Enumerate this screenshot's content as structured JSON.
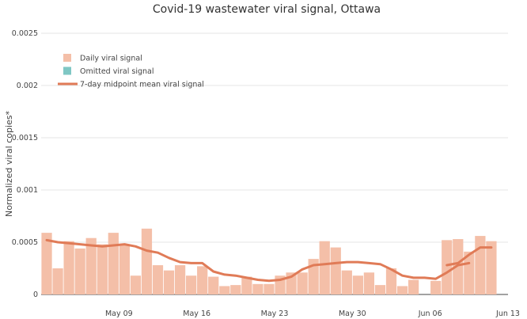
{
  "chart_data": {
    "type": "bar",
    "title": "Covid-19 wastewater viral signal, Ottawa",
    "ylabel": "Normalized viral copies*",
    "xlabel": "",
    "ylim": [
      0,
      0.0025
    ],
    "yticks": [
      "0",
      "0.0005",
      "0.001",
      "0.0015",
      "0.002",
      "0.0025"
    ],
    "ytick_values": [
      0,
      0.0005,
      0.001,
      0.0015,
      0.002,
      0.0025
    ],
    "xticks": [
      "May 09",
      "May 16",
      "May 23",
      "May 30",
      "Jun 06",
      "Jun 13"
    ],
    "xtick_dates": [
      "2021-05-09",
      "2021-05-16",
      "2021-05-23",
      "2021-05-30",
      "2021-06-06",
      "2021-06-13"
    ],
    "x_start": "2021-05-02",
    "x_end": "2021-06-13",
    "grid": true,
    "legend_position": "top-left",
    "legend": [
      {
        "label": "Daily viral signal",
        "kind": "bar",
        "color": "#f4bfa8"
      },
      {
        "label": "Omitted viral signal",
        "kind": "bar",
        "color": "#7fc7c4"
      },
      {
        "label": "7-day midpoint mean viral signal",
        "kind": "line",
        "color": "#e07b57"
      }
    ],
    "series": [
      {
        "name": "Daily viral signal",
        "color": "#f4bfa8",
        "dates": [
          "2021-05-02",
          "2021-05-03",
          "2021-05-04",
          "2021-05-05",
          "2021-05-06",
          "2021-05-07",
          "2021-05-08",
          "2021-05-09",
          "2021-05-10",
          "2021-05-11",
          "2021-05-12",
          "2021-05-13",
          "2021-05-14",
          "2021-05-15",
          "2021-05-16",
          "2021-05-17",
          "2021-05-18",
          "2021-05-19",
          "2021-05-20",
          "2021-05-21",
          "2021-05-22",
          "2021-05-23",
          "2021-05-24",
          "2021-05-25",
          "2021-05-26",
          "2021-05-27",
          "2021-05-28",
          "2021-05-29",
          "2021-05-30",
          "2021-05-31",
          "2021-06-01",
          "2021-06-02",
          "2021-06-03",
          "2021-06-04",
          "2021-06-05",
          "2021-06-06",
          "2021-06-07",
          "2021-06-08",
          "2021-06-09",
          "2021-06-10",
          "2021-06-11",
          "2021-06-12"
        ],
        "values": [
          0.00059,
          0.00025,
          0.00051,
          0.00044,
          0.00054,
          0.00048,
          0.00059,
          0.00048,
          0.00018,
          0.00063,
          0.00028,
          0.00023,
          0.00028,
          0.00018,
          0.00027,
          0.00017,
          8e-05,
          9e-05,
          0.00017,
          0.0001,
          0.0001,
          0.00018,
          0.00021,
          0.00021,
          0.00034,
          0.00051,
          0.00045,
          0.00023,
          0.00018,
          0.00021,
          9e-05,
          0.00025,
          8e-05,
          0.00014,
          null,
          0.00013,
          0.00052,
          0.00053,
          0.00041,
          0.00056,
          0.00051,
          null
        ]
      },
      {
        "name": "7-day midpoint mean viral signal",
        "color": "#e07b57",
        "dates": [
          "2021-05-02",
          "2021-05-03",
          "2021-05-04",
          "2021-05-05",
          "2021-05-06",
          "2021-05-07",
          "2021-05-08",
          "2021-05-09",
          "2021-05-10",
          "2021-05-11",
          "2021-05-12",
          "2021-05-13",
          "2021-05-14",
          "2021-05-15",
          "2021-05-16",
          "2021-05-17",
          "2021-05-18",
          "2021-05-19",
          "2021-05-20",
          "2021-05-21",
          "2021-05-22",
          "2021-05-23",
          "2021-05-24",
          "2021-05-25",
          "2021-05-26",
          "2021-05-27",
          "2021-05-28",
          "2021-05-29",
          "2021-05-30",
          "2021-05-31",
          "2021-06-01",
          "2021-06-02",
          "2021-06-03",
          "2021-06-04",
          "2021-06-05",
          "2021-06-06",
          "2021-06-07",
          "2021-06-08",
          "2021-06-09"
        ],
        "values": [
          0.00052,
          0.0005,
          0.00049,
          0.00048,
          0.00047,
          0.00046,
          0.00047,
          0.00048,
          0.00046,
          0.00042,
          0.0004,
          0.00035,
          0.00031,
          0.0003,
          0.0003,
          0.00022,
          0.00019,
          0.00018,
          0.00016,
          0.00014,
          0.00013,
          0.00014,
          0.00017,
          0.00024,
          0.00028,
          0.00029,
          0.0003,
          0.00031,
          0.00031,
          0.0003,
          0.00029,
          0.00024,
          0.00018,
          0.00016,
          0.00016,
          0.00015,
          0.00021,
          0.00028,
          0.0003
        ]
      }
    ],
    "line_extra": {
      "dates": [
        "2021-06-07",
        "2021-06-08",
        "2021-06-09",
        "2021-06-10",
        "2021-06-11"
      ],
      "values": [
        0.00028,
        0.0003,
        0.00038,
        0.00045,
        0.00045
      ]
    }
  }
}
